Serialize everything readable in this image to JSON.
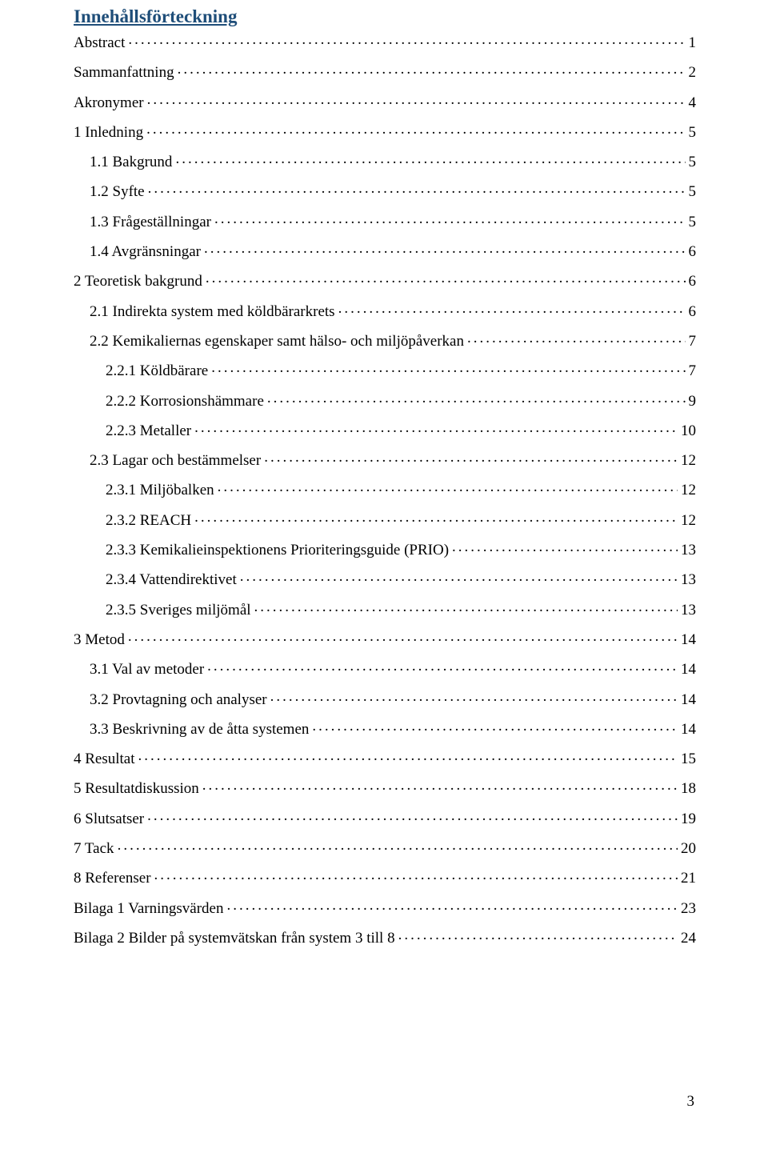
{
  "title": "Innehållsförteckning",
  "page_number": "3",
  "colors": {
    "title_color": "#1f4e79",
    "text_color": "#000000",
    "background": "#ffffff"
  },
  "fonts": {
    "family": "Times New Roman",
    "title_size_pt": 17,
    "entry_size_pt": 14
  },
  "entries": [
    {
      "label": "Abstract",
      "page": "1",
      "indent": 0
    },
    {
      "label": "Sammanfattning",
      "page": "2",
      "indent": 0
    },
    {
      "label": "Akronymer",
      "page": "4",
      "indent": 0
    },
    {
      "label": "1 Inledning",
      "page": "5",
      "indent": 0
    },
    {
      "label": "1.1 Bakgrund",
      "page": "5",
      "indent": 1
    },
    {
      "label": "1.2 Syfte",
      "page": "5",
      "indent": 1
    },
    {
      "label": "1.3 Frågeställningar",
      "page": "5",
      "indent": 1
    },
    {
      "label": "1.4 Avgränsningar",
      "page": "6",
      "indent": 1
    },
    {
      "label": "2 Teoretisk bakgrund",
      "page": "6",
      "indent": 0
    },
    {
      "label": "2.1 Indirekta system med köldbärarkrets",
      "page": "6",
      "indent": 1
    },
    {
      "label": "2.2 Kemikaliernas egenskaper samt hälso- och miljöpåverkan",
      "page": "7",
      "indent": 1
    },
    {
      "label": "2.2.1 Köldbärare",
      "page": "7",
      "indent": 2
    },
    {
      "label": "2.2.2 Korrosionshämmare",
      "page": "9",
      "indent": 2
    },
    {
      "label": "2.2.3 Metaller",
      "page": "10",
      "indent": 2
    },
    {
      "label": "2.3 Lagar och bestämmelser",
      "page": "12",
      "indent": 1
    },
    {
      "label": "2.3.1 Miljöbalken",
      "page": "12",
      "indent": 2
    },
    {
      "label": "2.3.2 REACH",
      "page": "12",
      "indent": 2
    },
    {
      "label": "2.3.3 Kemikalieinspektionens Prioriteringsguide (PRIO)",
      "page": "13",
      "indent": 2
    },
    {
      "label": "2.3.4 Vattendirektivet",
      "page": "13",
      "indent": 2
    },
    {
      "label": "2.3.5 Sveriges miljömål",
      "page": "13",
      "indent": 2
    },
    {
      "label": "3 Metod",
      "page": "14",
      "indent": 0
    },
    {
      "label": "3.1 Val av metoder",
      "page": "14",
      "indent": 1
    },
    {
      "label": "3.2 Provtagning och analyser",
      "page": "14",
      "indent": 1
    },
    {
      "label": "3.3 Beskrivning av de åtta systemen",
      "page": "14",
      "indent": 1
    },
    {
      "label": "4 Resultat",
      "page": "15",
      "indent": 0
    },
    {
      "label": "5 Resultatdiskussion",
      "page": "18",
      "indent": 0
    },
    {
      "label": "6 Slutsatser",
      "page": "19",
      "indent": 0
    },
    {
      "label": "7 Tack",
      "page": "20",
      "indent": 0
    },
    {
      "label": "8 Referenser",
      "page": "21",
      "indent": 0
    },
    {
      "label": "Bilaga 1 Varningsvärden",
      "page": "23",
      "indent": 0
    },
    {
      "label": "Bilaga 2 Bilder på systemvätskan från system 3 till 8",
      "page": "24",
      "indent": 0
    }
  ]
}
